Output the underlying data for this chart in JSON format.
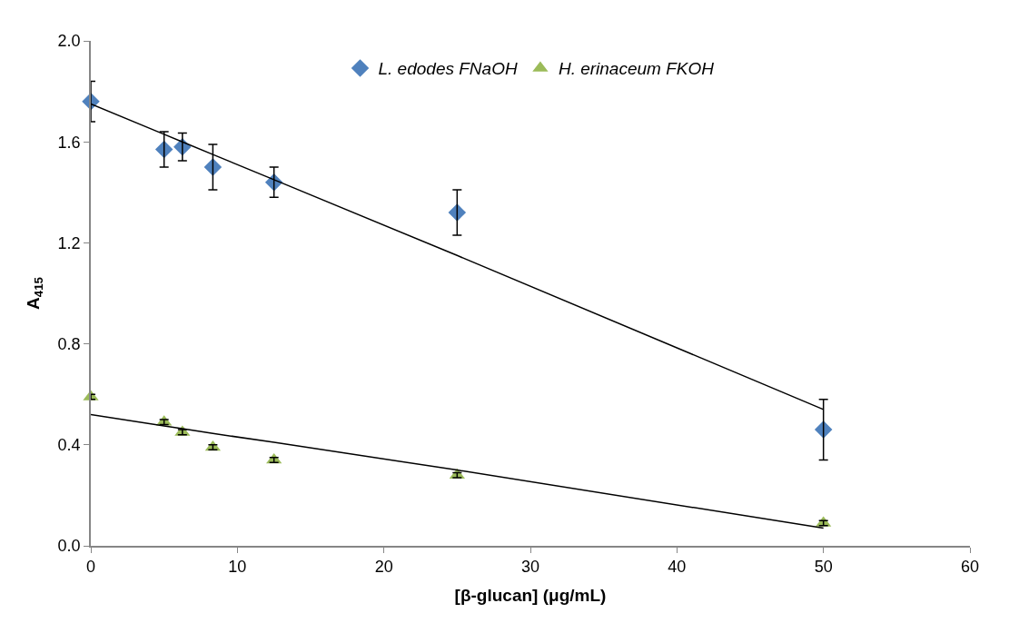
{
  "chart_data": {
    "type": "scatter",
    "xlabel": "[β-glucan] (μg/mL)",
    "ylabel": "A$_{415}$",
    "xlim": [
      0,
      60
    ],
    "xticks": [
      0,
      10,
      20,
      30,
      40,
      50,
      60
    ],
    "ylim": [
      0,
      2.0
    ],
    "yticks": [
      {
        "value": 0,
        "label": "0.0"
      },
      {
        "value": 0.4,
        "label": "0.4"
      },
      {
        "value": 0.8,
        "label": "0.8"
      },
      {
        "value": 1.2,
        "label": "1.2"
      },
      {
        "value": 1.6,
        "label": "1.6"
      },
      {
        "value": 2.0,
        "label": "2.0"
      }
    ],
    "legend": "top",
    "x": [
      0,
      5,
      6.25,
      8.33,
      12.5,
      25,
      50
    ],
    "series": [
      {
        "name": "L. edodes FNaOH",
        "color": "#4f81bd",
        "marker": "diamond",
        "values": [
          1.76,
          1.57,
          1.58,
          1.5,
          1.44,
          1.32,
          0.46
        ],
        "errors": [
          0.08,
          0.07,
          0.055,
          0.09,
          0.06,
          0.09,
          0.12
        ]
      },
      {
        "name": "H. erinaceum FKOH",
        "color": "#9bbb59",
        "marker": "triangle",
        "values": [
          0.59,
          0.49,
          0.45,
          0.39,
          0.34,
          0.28,
          0.09
        ],
        "errors": [
          0.01,
          0.01,
          0.01,
          0.01,
          0.01,
          0.01,
          0.01
        ]
      },
      {
        "type": "line",
        "color": "#000000",
        "values": [
          1.75,
          1.63,
          1.6,
          1.55,
          1.45,
          1.15,
          0.54
        ],
        "marker": "none"
      },
      {
        "type": "line",
        "color": "#000000",
        "values": [
          0.52,
          0.475,
          0.464,
          0.445,
          0.41,
          0.3,
          0.07
        ],
        "marker": "none"
      }
    ]
  }
}
